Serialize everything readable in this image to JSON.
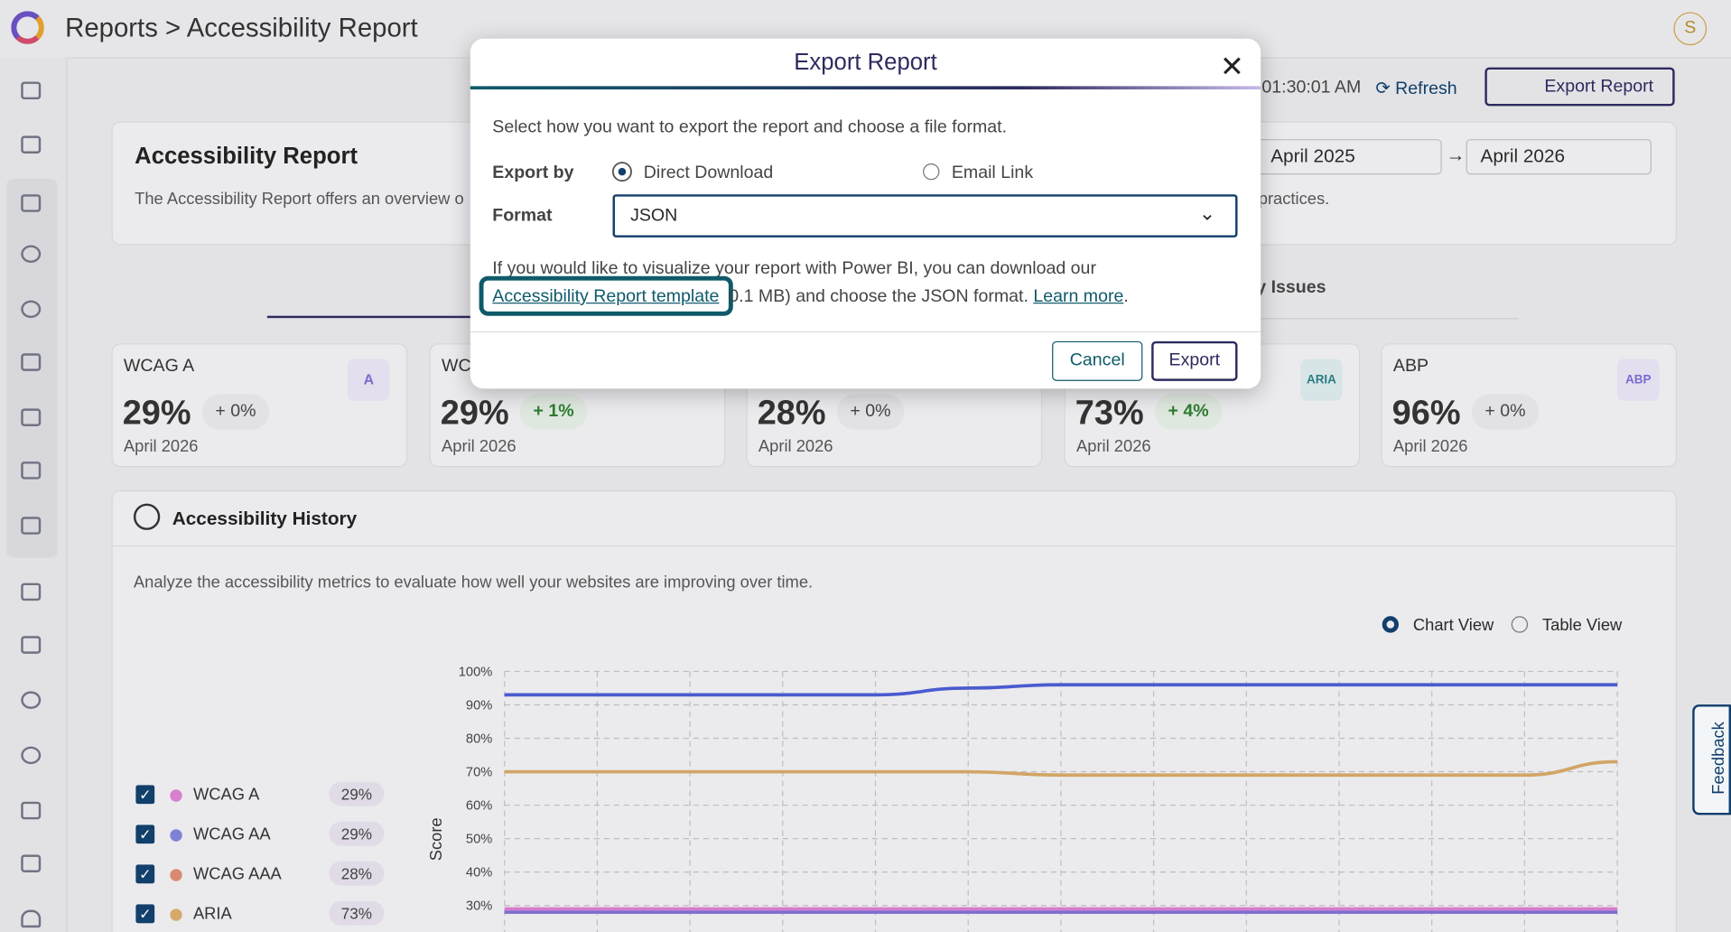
{
  "header": {
    "breadcrumb": "Reports > Accessibility Report",
    "avatar": "S"
  },
  "toolbar": {
    "time": "01:30:01 AM",
    "refresh": "Refresh",
    "export": "Export Report"
  },
  "report_card": {
    "title": "Accessibility Report",
    "description": [
      "The Accessibility Report offers an overview o",
      "practices."
    ],
    "date_from": "April 2025",
    "date_to": "April 2026"
  },
  "tab": "y Issues",
  "metric_cards": [
    {
      "label": "WCAG A",
      "value": "29%",
      "change": "+ 0%",
      "date": "April 2026",
      "badge": "A"
    },
    {
      "label": "WC",
      "value": "29%",
      "change": "+ 1%",
      "date": "April 2026"
    },
    {
      "value": "28%",
      "change": "+ 0%",
      "date": "April 2026"
    },
    {
      "value": "73%",
      "change": "+ 4%",
      "date": "April 2026",
      "badge": "ARIA"
    },
    {
      "label": "ABP",
      "value": "96%",
      "change": "+ 0%",
      "date": "April 2026",
      "badge": "ABP"
    }
  ],
  "history": {
    "title": "Accessibility History",
    "description": "Analyze the accessibility metrics to evaluate how well your websites are improving over time.",
    "views": [
      "Chart View",
      "Table View"
    ],
    "legend": [
      {
        "name": "WCAG A",
        "value": "29%",
        "color": "#d97fcf"
      },
      {
        "name": "WCAG AA",
        "value": "29%",
        "color": "#7f82d4"
      },
      {
        "name": "WCAG AAA",
        "value": "28%",
        "color": "#d98a72"
      },
      {
        "name": "ARIA",
        "value": "73%",
        "color": "#d6a86a"
      }
    ],
    "chart": {
      "y_label": "Score",
      "ylim": [
        0,
        100
      ],
      "yticks": [
        {
          "value": 100,
          "label": "100%"
        },
        {
          "value": 90,
          "label": "90%"
        },
        {
          "value": 80,
          "label": "80%"
        },
        {
          "value": 70,
          "label": "70%"
        },
        {
          "value": 60,
          "label": "60%"
        },
        {
          "value": 50,
          "label": "50%"
        },
        {
          "value": 40,
          "label": "40%"
        },
        {
          "value": 30,
          "label": "30%"
        }
      ],
      "series": [
        {
          "color": "#4a5bcf",
          "values": [
            93,
            93,
            93,
            93,
            93,
            95,
            96,
            96,
            96,
            96,
            96,
            96,
            96
          ]
        },
        {
          "color": "#d2a565",
          "values": [
            70,
            70,
            70,
            70,
            70,
            70,
            69,
            69,
            69,
            69,
            69,
            69,
            73
          ]
        },
        {
          "color": "#d77ccb",
          "values": [
            29,
            29,
            29,
            29,
            29,
            29,
            29,
            29,
            29,
            29,
            29,
            29,
            29
          ]
        },
        {
          "color": "#7f6bd0",
          "values": [
            28,
            28,
            28,
            28,
            28,
            28,
            28,
            28,
            28,
            28,
            28,
            28,
            28
          ]
        }
      ]
    }
  },
  "modal": {
    "title": "Export Report",
    "instruction": "Select how you want to export the report and choose a file format.",
    "export_by_label": "Export by",
    "options": [
      "Direct Download",
      "Email Link"
    ],
    "format_label": "Format",
    "format": "JSON",
    "info_text": "If you would like to visualize your report with Power BI, you can download our",
    "template_link": "Accessibility Report template",
    "info_size": "0.1 MB) and choose the JSON format.",
    "learn_more": "Learn more",
    "info_end": ".",
    "cancel": "Cancel",
    "confirm": "Export"
  },
  "feedback": "Feedback"
}
